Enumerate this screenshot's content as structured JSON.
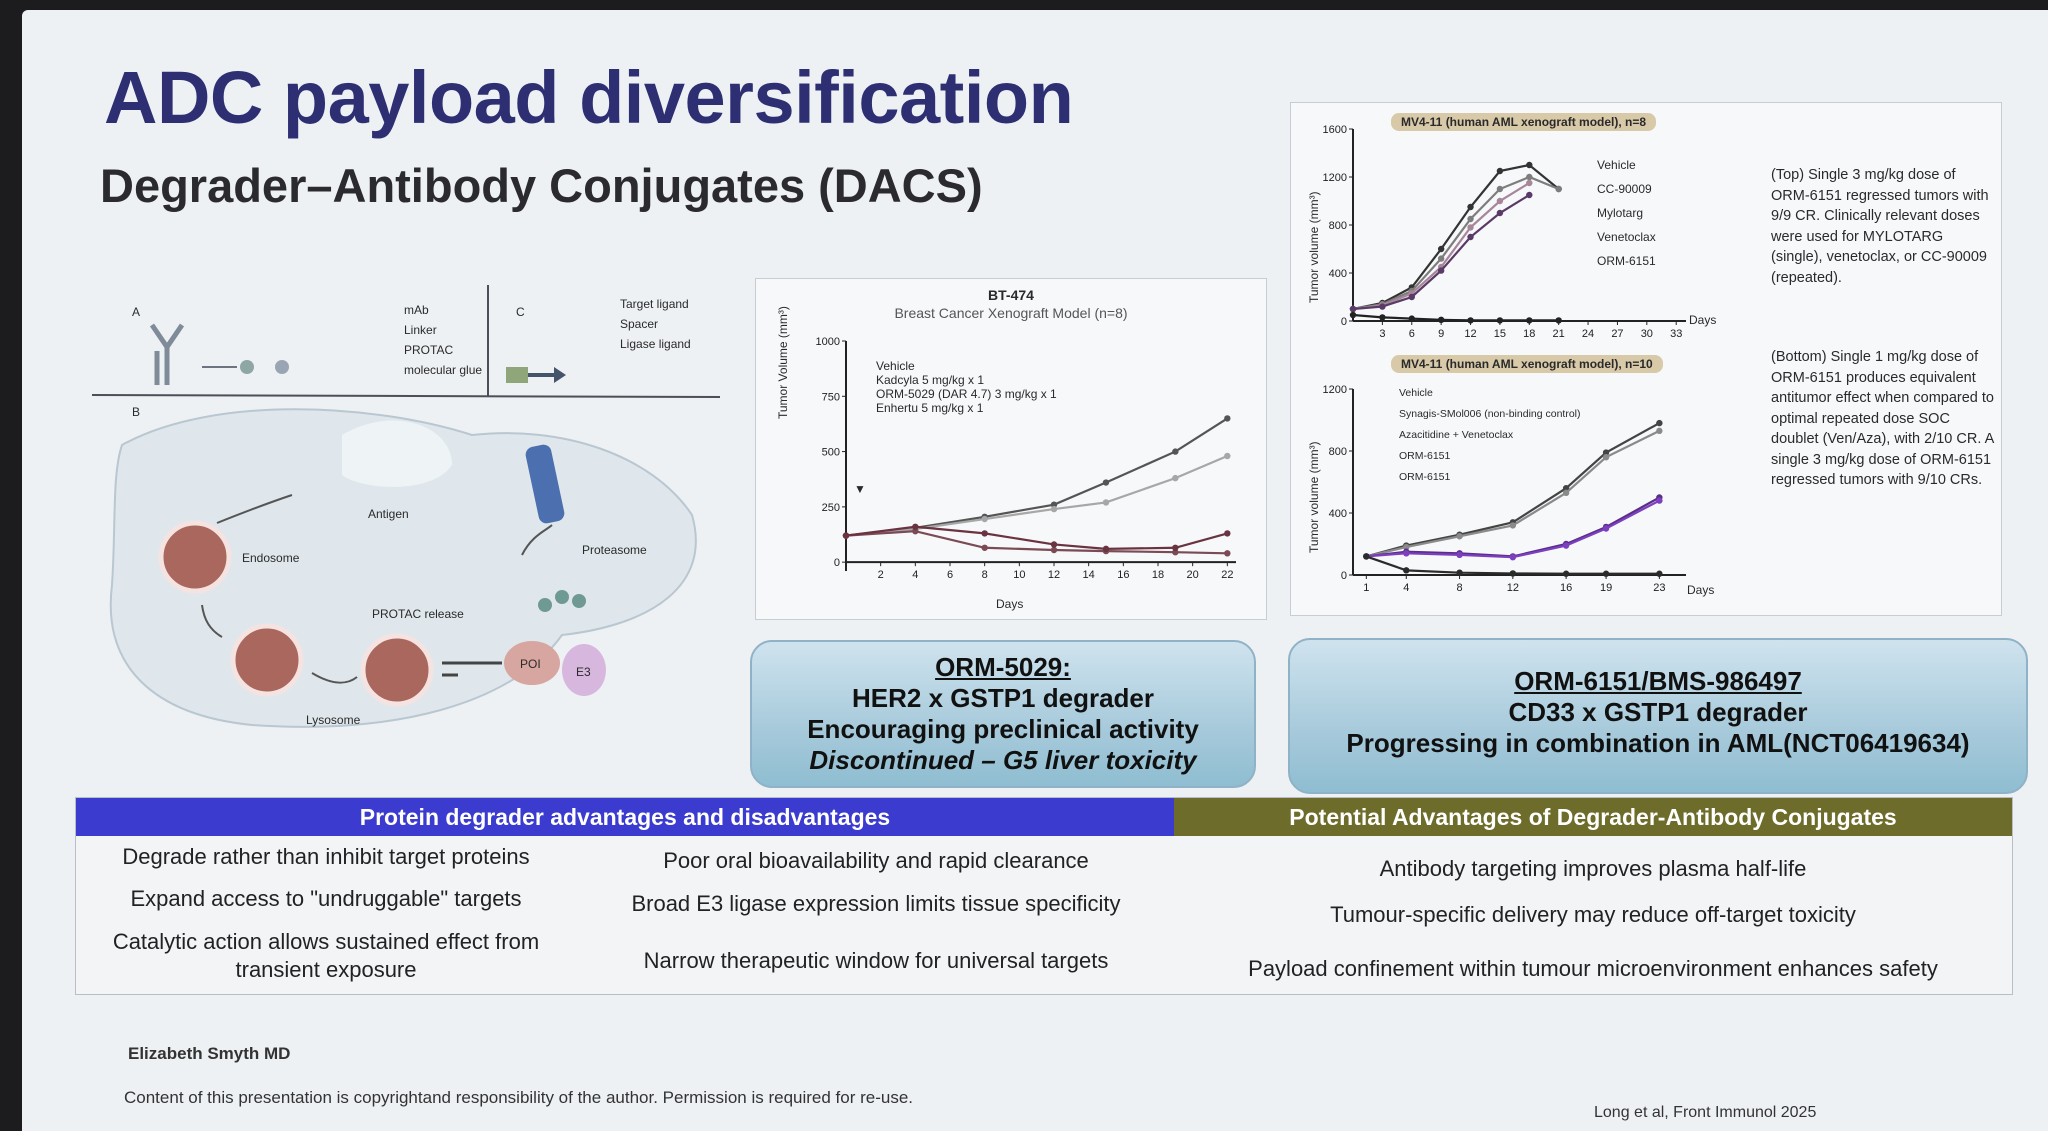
{
  "slide": {
    "title": "ADC payload diversification",
    "subtitle": "Degrader–Antibody Conjugates (DACS)"
  },
  "schematic": {
    "panel_a": "A",
    "panel_b": "B",
    "panel_c": "C",
    "legend_a": [
      "mAb",
      "Linker",
      "PROTAC",
      "molecular glue"
    ],
    "legend_c": [
      "Target ligand",
      "Spacer",
      "Ligase ligand"
    ],
    "labels": {
      "antigen": "Antigen",
      "endosome": "Endosome",
      "lysosome": "Lysosome",
      "protac_release": "PROTAC release",
      "proteasome": "Proteasome",
      "poi": "POI",
      "e3": "E3"
    }
  },
  "chart_bt474": {
    "title": "BT-474",
    "subtitle": "Breast Cancer Xenograft Model (n=8)",
    "ylabel": "Tumor Volume (mm³)",
    "xlabel": "Days",
    "legend": [
      "Vehicle",
      "Kadcyla 5 mg/kg x 1",
      "ORM-5029 (DAR 4.7) 3 mg/kg x 1",
      "Enhertu 5 mg/kg x 1"
    ],
    "arrow_label": "▼"
  },
  "chart_mv411_top": {
    "title": "MV4-11 (human AML xenograft model), n=8",
    "ylabel": "Tumor volume (mm³)",
    "xlabel": "Days",
    "legend": [
      "Vehicle",
      "CC-90009",
      "Mylotarg",
      "Venetoclax",
      "ORM-6151"
    ]
  },
  "chart_mv411_bottom": {
    "title": "MV4-11 (human AML xenograft model), n=10",
    "ylabel": "Tumor volume (mm³)",
    "xlabel": "Days",
    "legend": [
      "Vehicle",
      "Synagis-SMol006 (non-binding control)",
      "Azacitidine + Venetoclax",
      "ORM-6151",
      "ORM-6151"
    ]
  },
  "chart_data": [
    {
      "type": "line",
      "title": "BT-474",
      "subtitle": "Breast Cancer Xenograft Model (n=8)",
      "xlabel": "Days",
      "ylabel": "Tumor Volume (mm³)",
      "x": [
        0,
        4,
        8,
        12,
        15,
        19,
        22
      ],
      "xticks": [
        2,
        4,
        6,
        8,
        10,
        12,
        14,
        16,
        18,
        20,
        22
      ],
      "yticks": [
        0,
        250,
        500,
        750,
        1000
      ],
      "xlim": [
        0,
        22.5
      ],
      "ylim": [
        -40,
        1000
      ],
      "series": [
        {
          "name": "Vehicle",
          "color": "#555555",
          "values": [
            120,
            155,
            205,
            260,
            360,
            500,
            650
          ]
        },
        {
          "name": "Kadcyla 5 mg/kg x 1",
          "color": "#a7a7a7",
          "values": [
            120,
            150,
            195,
            240,
            270,
            380,
            480
          ]
        },
        {
          "name": "ORM-5029 (DAR 4.7) 3 mg/kg x 1",
          "color": "#7a4a55",
          "values": [
            120,
            140,
            65,
            55,
            50,
            45,
            40
          ]
        },
        {
          "name": "Enhertu 5 mg/kg x 1",
          "color": "#6a3340",
          "values": [
            120,
            160,
            130,
            80,
            60,
            65,
            130
          ]
        }
      ]
    },
    {
      "type": "line",
      "title": "MV4-11 (human AML xenograft model), n=8",
      "xlabel": "Days",
      "ylabel": "Tumor volume (mm³)",
      "x": [
        0,
        3,
        6,
        9,
        12,
        15,
        18,
        21
      ],
      "xticks": [
        3,
        6,
        9,
        12,
        15,
        18,
        21,
        24,
        27,
        30,
        33
      ],
      "yticks": [
        0,
        400,
        800,
        1200,
        1600
      ],
      "xlim": [
        0,
        34
      ],
      "ylim": [
        0,
        1600
      ],
      "series": [
        {
          "name": "Vehicle",
          "color": "#333333",
          "values": [
            100,
            150,
            280,
            600,
            950,
            1250,
            1300,
            1100
          ]
        },
        {
          "name": "CC-90009",
          "color": "#7d7d7d",
          "values": [
            100,
            140,
            250,
            520,
            850,
            1100,
            1200,
            1100
          ]
        },
        {
          "name": "Mylotarg",
          "color": "#a8869a",
          "values": [
            100,
            130,
            230,
            450,
            780,
            1000,
            1150,
            null
          ]
        },
        {
          "name": "Venetoclax",
          "color": "#5a3a66",
          "values": [
            100,
            120,
            200,
            420,
            700,
            900,
            1050,
            null
          ]
        },
        {
          "name": "ORM-6151",
          "color": "#222222",
          "values": [
            50,
            30,
            20,
            10,
            5,
            5,
            5,
            5
          ]
        }
      ]
    },
    {
      "type": "line",
      "title": "MV4-11 (human AML xenograft model), n=10",
      "xlabel": "Days",
      "ylabel": "Tumor volume (mm³)",
      "x": [
        1,
        4,
        8,
        12,
        16,
        19,
        23
      ],
      "xticks": [
        1,
        4,
        8,
        12,
        16,
        19,
        23
      ],
      "yticks": [
        0,
        400,
        800,
        1200
      ],
      "xlim": [
        0,
        25
      ],
      "ylim": [
        0,
        1200
      ],
      "series": [
        {
          "name": "Vehicle",
          "color": "#444444",
          "values": [
            120,
            190,
            260,
            340,
            560,
            790,
            980
          ]
        },
        {
          "name": "Synagis-SMol006 (non-binding control)",
          "color": "#8a8a8a",
          "values": [
            120,
            180,
            250,
            320,
            530,
            760,
            930
          ]
        },
        {
          "name": "Azacitidine + Venetoclax",
          "color": "#5a2e87",
          "values": [
            120,
            150,
            140,
            120,
            200,
            310,
            500
          ]
        },
        {
          "name": "ORM-6151",
          "color": "#7b3fbf",
          "values": [
            120,
            140,
            130,
            115,
            190,
            300,
            480
          ]
        },
        {
          "name": "ORM-6151",
          "color": "#2b2b2b",
          "values": [
            120,
            30,
            15,
            10,
            8,
            8,
            8
          ]
        }
      ]
    }
  ],
  "notes": {
    "top": "(Top) Single 3 mg/kg dose of ORM-6151 regressed tumors with 9/9 CR. Clinically relevant doses were used for MYLOTARG (single), venetoclax, or CC-90009 (repeated).",
    "bottom": "(Bottom) Single 1 mg/kg dose of ORM-6151 produces equivalent antitumor effect when compared to optimal repeated dose SOC doublet (Ven/Aza), with 2/10 CR. A single 3 mg/kg dose of ORM-6151 regressed tumors with 9/10 CRs."
  },
  "callout_left": {
    "line1": "ORM-5029:",
    "line2": "HER2 x GSTP1 degrader",
    "line3": "Encouraging preclinical activity",
    "line4": "Discontinued – G5 liver toxicity"
  },
  "callout_right": {
    "line1": "ORM-6151/BMS-986497",
    "line2": "CD33 x GSTP1 degrader",
    "line3": "Progressing in combination in AML(NCT06419634)"
  },
  "table": {
    "header_left": "Protein degrader advantages and disadvantages",
    "header_right": "Potential Advantages of Degrader-Antibody Conjugates",
    "advantages": [
      "Degrade rather than inhibit target proteins",
      "Expand access to \"undruggable\" targets",
      "Catalytic action allows sustained effect from transient exposure"
    ],
    "disadvantages": [
      "Poor oral bioavailability and rapid clearance",
      "Broad E3 ligase expression limits tissue specificity",
      "Narrow therapeutic window for universal targets"
    ],
    "dac_advantages": [
      "Antibody targeting improves plasma half-life",
      "Tumour-specific delivery may reduce off-target toxicity",
      "Payload confinement within tumour microenvironment enhances safety"
    ]
  },
  "footer": {
    "author": "Elizabeth Smyth MD",
    "copyright": "Content of this presentation is copyrightand responsibility of the author. Permission is required for re-use.",
    "reference": "Long et al, Front Immunol 2025"
  }
}
